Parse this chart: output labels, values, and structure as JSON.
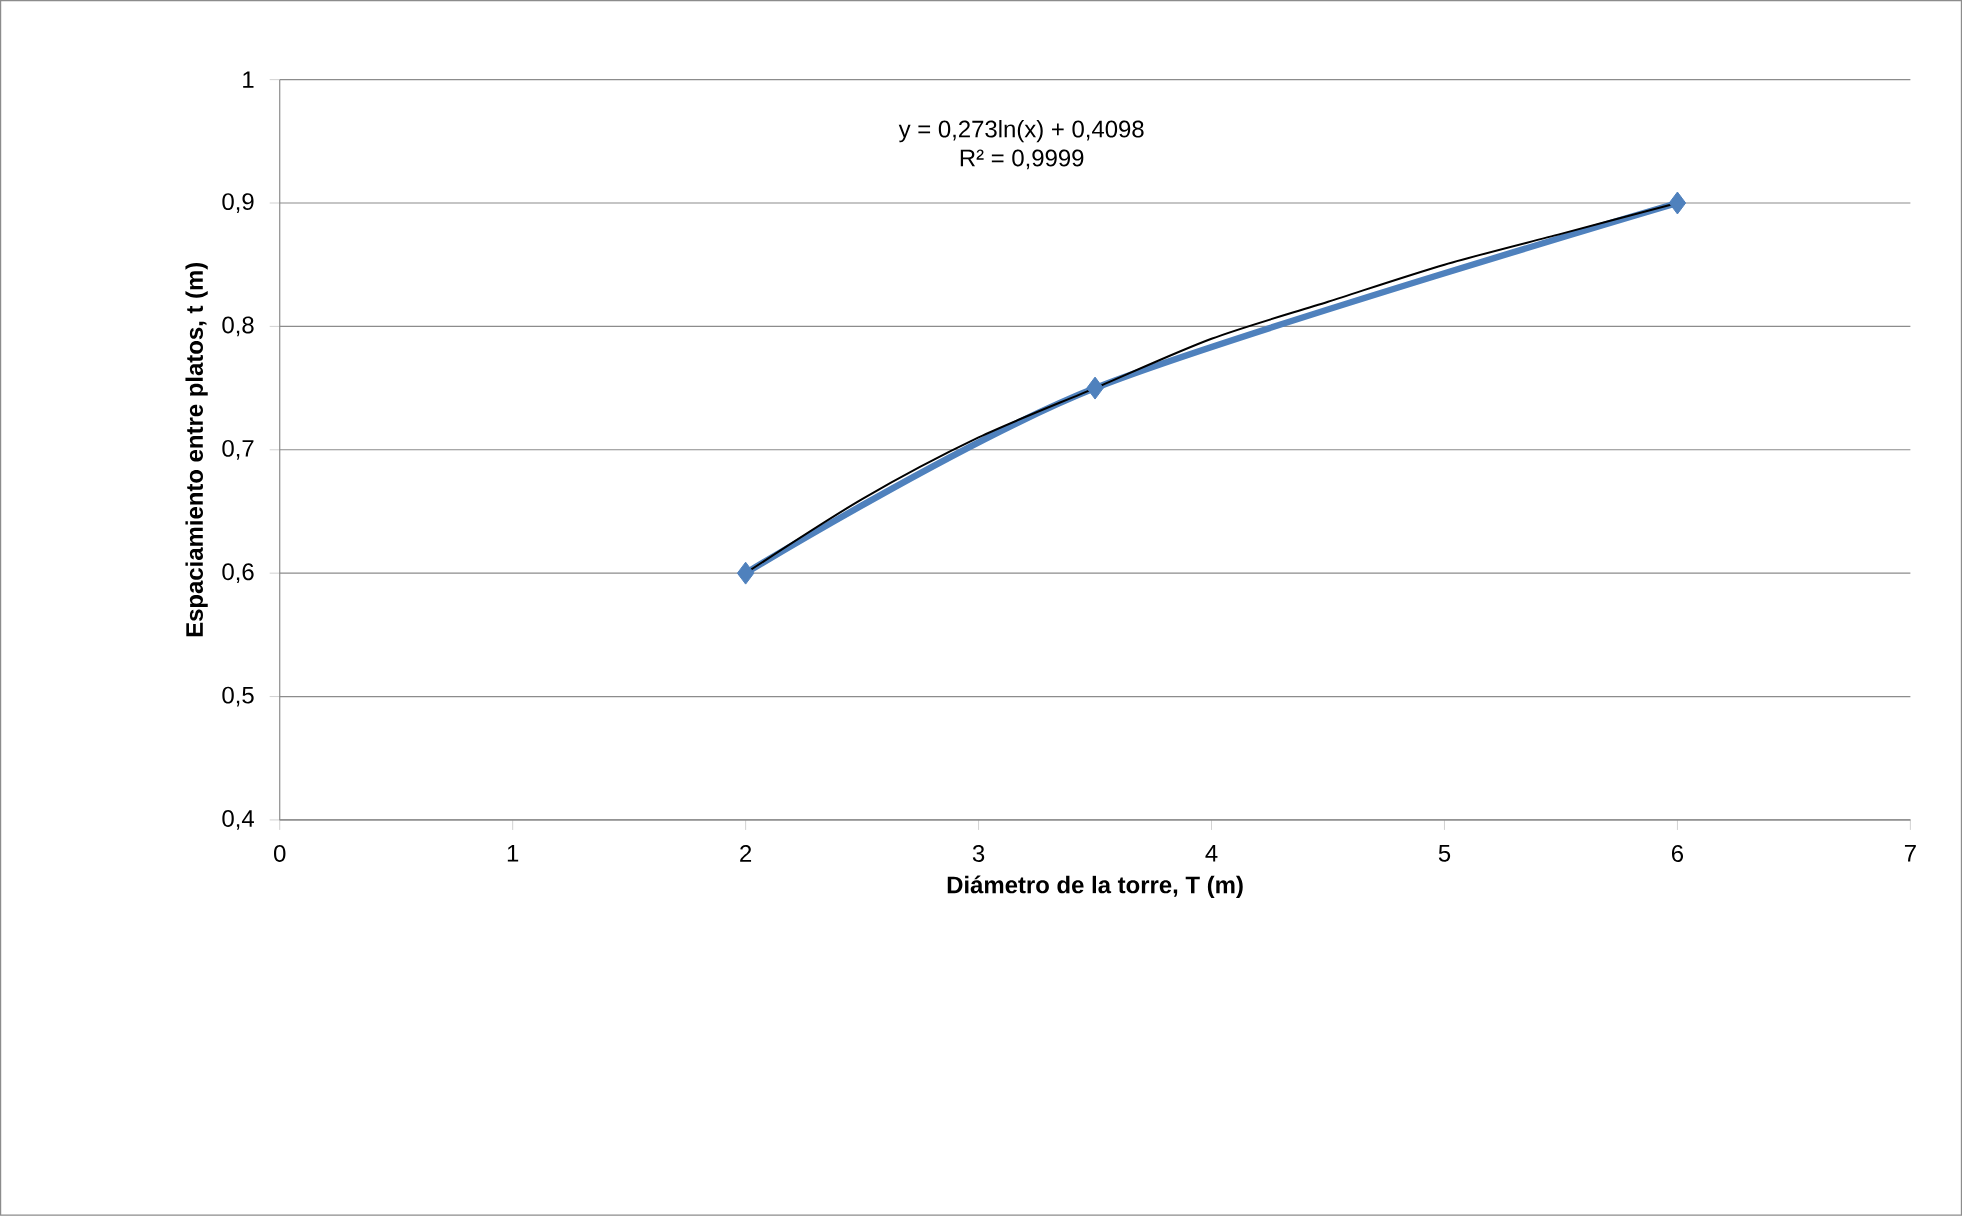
{
  "chart_data": {
    "type": "line",
    "xlabel": "Diámetro de la torre, T (m)",
    "ylabel": "Espaciamiento entre platos, t (m)",
    "xlim": [
      0,
      7
    ],
    "xticks": [
      0,
      1,
      2,
      3,
      4,
      5,
      6,
      7
    ],
    "ylim": [
      0.4,
      1
    ],
    "yticks": [
      {
        "value": 0.4,
        "label": "0,4"
      },
      {
        "value": 0.5,
        "label": "0,5"
      },
      {
        "value": 0.6,
        "label": "0,6"
      },
      {
        "value": 0.7,
        "label": "0,7"
      },
      {
        "value": 0.8,
        "label": "0,8"
      },
      {
        "value": 0.9,
        "label": "0,9"
      },
      {
        "value": 1,
        "label": "1"
      }
    ],
    "grid": "y",
    "marker": "diamond",
    "line_style": "solid",
    "series": [
      {
        "color": "#4f81bd",
        "x": [
          2,
          3.5,
          6
        ],
        "values": [
          0.6,
          0.75,
          0.9
        ]
      },
      {
        "color": "#000000",
        "marker": "none",
        "x": [
          2,
          2.5,
          3,
          3.5,
          4,
          4.5,
          5,
          5.5,
          6
        ],
        "values": [
          0.6,
          0.66,
          0.71,
          0.75,
          0.79,
          0.82,
          0.85,
          0.875,
          0.9
        ]
      }
    ],
    "annotations": [
      "y = 0,273ln(x) + 0,4098",
      "R² = 0,9999"
    ]
  }
}
